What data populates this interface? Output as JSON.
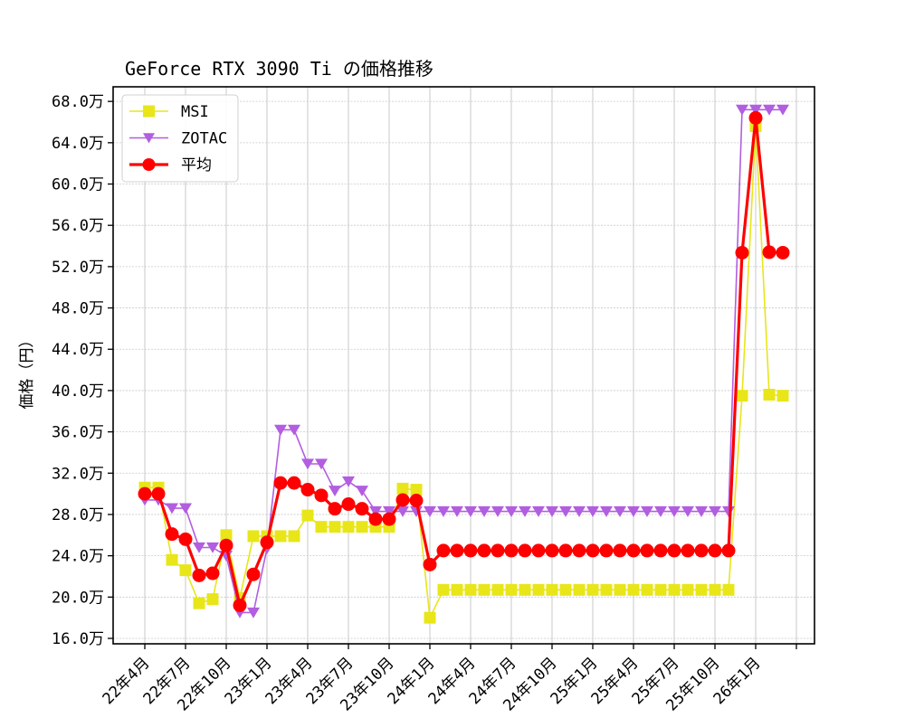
{
  "chart_data": {
    "type": "line",
    "title": "GeForce RTX 3090 Ti の価格推移",
    "xlabel": "",
    "ylabel": "価格（円）",
    "ylim": [
      15.7,
      69.2
    ],
    "yunit": "万",
    "yticks": [
      16,
      20,
      24,
      28,
      32,
      36,
      40,
      44,
      48,
      52,
      56,
      60,
      64,
      68
    ],
    "ytick_labels": [
      "16.0万",
      "20.0万",
      "24.0万",
      "28.0万",
      "32.0万",
      "36.0万",
      "40.0万",
      "44.0万",
      "48.0万",
      "52.0万",
      "56.0万",
      "60.0万",
      "64.0万",
      "68.0万"
    ],
    "xtick_labels": [
      "22年4月",
      "22年7月",
      "22年10月",
      "23年1月",
      "23年4月",
      "23年7月",
      "23年10月",
      "24年1月",
      "24年4月",
      "24年7月",
      "24年10月",
      "25年1月",
      "25年4月",
      "25年7月",
      "25年10月",
      "26年1月",
      ""
    ],
    "grid": true,
    "legend_position": "upper left",
    "x": [
      "22年4月",
      "22年5月",
      "22年6月",
      "22年7月",
      "22年8月",
      "22年9月",
      "22年10月",
      "22年11月",
      "22年12月",
      "23年1月",
      "23年2月",
      "23年3月",
      "23年4月",
      "23年5月",
      "23年6月",
      "23年7月",
      "23年8月",
      "23年9月",
      "23年10月",
      "23年11月",
      "23年12月",
      "24年1月",
      "24年2月",
      "24年3月",
      "24年4月",
      "24年5月",
      "24年6月",
      "24年7月",
      "24年8月",
      "24年9月",
      "24年10月",
      "24年11月",
      "24年12月",
      "25年1月",
      "25年2月",
      "25年3月",
      "25年4月",
      "25年5月",
      "25年6月",
      "25年7月",
      "25年8月",
      "25年9月",
      "25年10月",
      "25年11月",
      "25年12月",
      "26年1月",
      "26年2月",
      "26年3月"
    ],
    "series": [
      {
        "name": "MSI",
        "color": "#e8e619",
        "marker": "square",
        "values": [
          30.6,
          30.6,
          23.6,
          22.6,
          19.4,
          19.8,
          26.0,
          19.9,
          25.9,
          25.9,
          25.9,
          25.9,
          27.9,
          26.8,
          26.8,
          26.8,
          26.8,
          26.8,
          26.8,
          30.5,
          30.4,
          18.0,
          20.7,
          20.7,
          20.7,
          20.7,
          20.7,
          20.7,
          20.7,
          20.7,
          20.7,
          20.7,
          20.7,
          20.7,
          20.7,
          20.7,
          20.7,
          20.7,
          20.7,
          20.7,
          20.7,
          20.7,
          20.7,
          20.7,
          39.5,
          65.6,
          39.6,
          39.5
        ]
      },
      {
        "name": "ZOTAC",
        "color": "#b25ee0",
        "marker": "triangle-down",
        "values": [
          29.4,
          29.4,
          28.6,
          28.6,
          24.8,
          24.8,
          24.0,
          18.5,
          18.5,
          24.7,
          36.2,
          36.2,
          32.9,
          32.9,
          30.3,
          31.2,
          30.3,
          28.3,
          28.3,
          28.3,
          28.3,
          28.3,
          28.3,
          28.3,
          28.3,
          28.3,
          28.3,
          28.3,
          28.3,
          28.3,
          28.3,
          28.3,
          28.3,
          28.3,
          28.3,
          28.3,
          28.3,
          28.3,
          28.3,
          28.3,
          28.3,
          28.3,
          28.3,
          28.3,
          67.2,
          67.2,
          67.2,
          67.2
        ]
      },
      {
        "name": "平均",
        "color": "#ff0000",
        "marker": "circle",
        "values": [
          30.0,
          30.0,
          26.1,
          25.6,
          22.1,
          22.3,
          25.0,
          19.2,
          22.2,
          25.3,
          31.05,
          31.05,
          30.4,
          29.85,
          28.55,
          29.0,
          28.55,
          27.55,
          27.55,
          29.4,
          29.35,
          23.15,
          24.5,
          24.5,
          24.5,
          24.5,
          24.5,
          24.5,
          24.5,
          24.5,
          24.5,
          24.5,
          24.5,
          24.5,
          24.5,
          24.5,
          24.5,
          24.5,
          24.5,
          24.5,
          24.5,
          24.5,
          24.5,
          24.5,
          53.35,
          66.4,
          53.4,
          53.35
        ]
      }
    ]
  }
}
